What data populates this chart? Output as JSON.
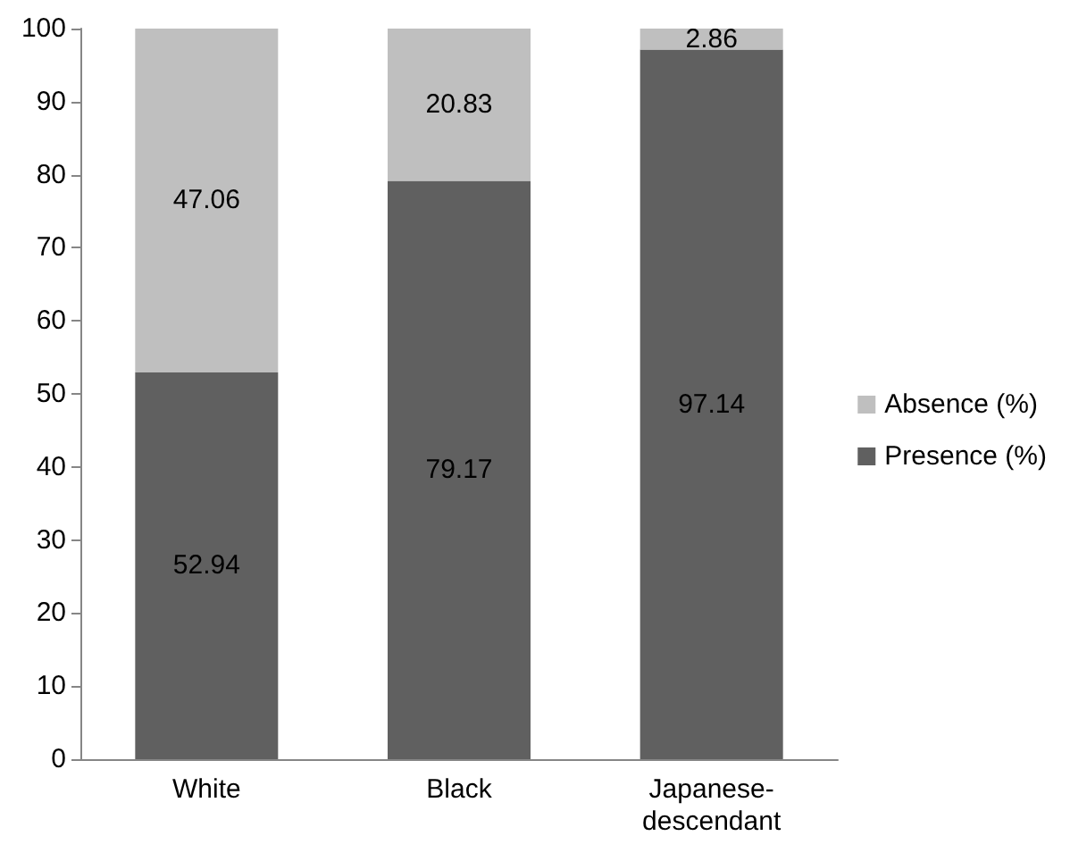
{
  "chart_data": {
    "type": "bar",
    "stacked": true,
    "categories": [
      "White",
      "Black",
      "Japanese-descendant"
    ],
    "series": [
      {
        "name": "Presence (%)",
        "color": "#606060",
        "values": [
          52.94,
          79.17,
          97.14
        ]
      },
      {
        "name": "Absence (%)",
        "color": "#bfbfbf",
        "values": [
          47.06,
          20.83,
          2.86
        ]
      }
    ],
    "ylim": [
      0,
      100
    ],
    "yticks": [
      0,
      10,
      20,
      30,
      40,
      50,
      60,
      70,
      80,
      90,
      100
    ],
    "grid": false,
    "legend": "right",
    "data_labels": true
  }
}
